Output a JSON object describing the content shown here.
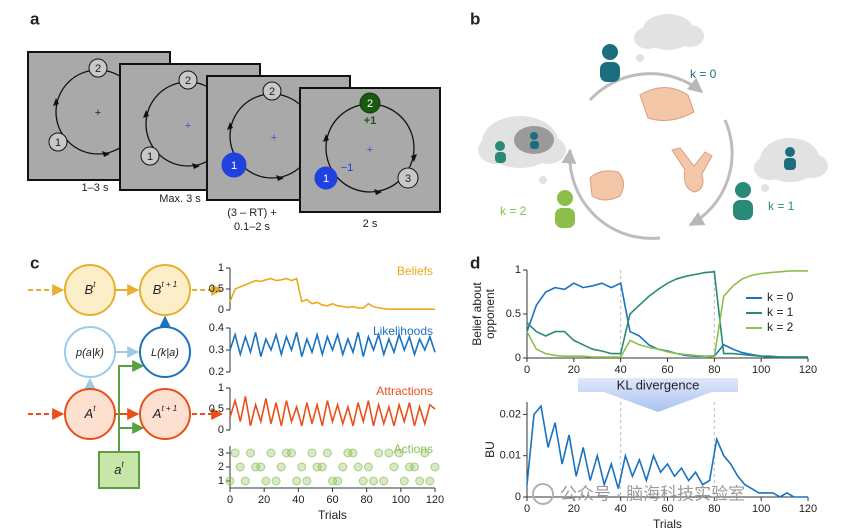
{
  "panel_a": {
    "label": "a",
    "screens": [
      {
        "targets": [
          "2",
          "1"
        ],
        "fixation": "+",
        "caption": [
          "1–3 s"
        ]
      },
      {
        "targets": [
          "2",
          "1"
        ],
        "fixation": "+",
        "caption": [
          "Max. 3 s"
        ]
      },
      {
        "targets": [
          "2",
          "1"
        ],
        "fixation": "+",
        "caption": [
          "(3 – RT) +",
          "0.1–2 s"
        ]
      },
      {
        "targets": [
          "2",
          "1",
          "3"
        ],
        "fixation": "+",
        "outcomes": [
          "+1",
          "−1"
        ],
        "caption": [
          "2 s"
        ]
      }
    ]
  },
  "panel_b": {
    "label": "b",
    "players": [
      "k = 0",
      "k = 1",
      "k = 2"
    ]
  },
  "panel_c": {
    "label": "c",
    "nodes": [
      {
        "base": "B",
        "sup": "t"
      },
      {
        "base": "B",
        "sup": "t + 1"
      },
      {
        "base": "p(a|k)"
      },
      {
        "base": "L(k|a)"
      },
      {
        "base": "A",
        "sup": "t"
      },
      {
        "base": "A",
        "sup": "t + 1"
      },
      {
        "base": "a",
        "sup": "t"
      }
    ]
  },
  "panel_d": {
    "label": "d",
    "arrow": "KL divergence"
  },
  "watermark": "公众号 · 脑海科技实验室",
  "chart_data": [
    {
      "type": "line",
      "title": "Beliefs",
      "x": [
        0,
        3,
        6,
        9,
        12,
        15,
        18,
        21,
        24,
        27,
        30,
        33,
        36,
        39,
        42,
        45,
        48,
        51,
        54,
        57,
        60,
        63,
        66,
        69,
        72,
        75,
        78,
        81,
        84,
        87,
        90,
        93,
        96,
        99,
        102,
        105,
        108,
        111,
        114,
        117,
        120
      ],
      "series": [
        {
          "color": "#f0a818",
          "values": [
            0.2,
            0.5,
            0.55,
            0.6,
            0.65,
            0.7,
            0.68,
            0.72,
            0.75,
            0.7,
            0.72,
            0.75,
            0.7,
            0.75,
            0.2,
            0.25,
            0.15,
            0.18,
            0.12,
            0.1,
            0.15,
            0.1,
            0.08,
            0.06,
            0.08,
            0.05,
            0.05,
            0.15,
            0.08,
            0.05,
            0.03,
            0.02,
            0.02,
            0.02,
            0.02,
            0.02,
            0.02,
            0.02,
            0.02,
            0.02,
            0.02
          ]
        }
      ],
      "xlim": [
        0,
        120
      ],
      "ylim": [
        0,
        1
      ],
      "yticks": [
        0,
        0.5,
        1
      ]
    },
    {
      "type": "line",
      "title": "Likelihoods",
      "x": [
        0,
        3,
        6,
        9,
        12,
        15,
        18,
        21,
        24,
        27,
        30,
        33,
        36,
        39,
        42,
        45,
        48,
        51,
        54,
        57,
        60,
        63,
        66,
        69,
        72,
        75,
        78,
        81,
        84,
        87,
        90,
        93,
        96,
        99,
        102,
        105,
        108,
        111,
        114,
        117,
        120
      ],
      "series": [
        {
          "color": "#1a73c0",
          "values": [
            0.3,
            0.37,
            0.28,
            0.36,
            0.29,
            0.38,
            0.27,
            0.35,
            0.3,
            0.37,
            0.28,
            0.36,
            0.3,
            0.38,
            0.27,
            0.35,
            0.29,
            0.37,
            0.28,
            0.36,
            0.3,
            0.37,
            0.28,
            0.35,
            0.29,
            0.38,
            0.27,
            0.36,
            0.3,
            0.37,
            0.28,
            0.35,
            0.29,
            0.37,
            0.3,
            0.36,
            0.28,
            0.35,
            0.3,
            0.36,
            0.29
          ]
        }
      ],
      "xlim": [
        0,
        120
      ],
      "ylim": [
        0.2,
        0.4
      ],
      "yticks": [
        0.2,
        0.3,
        0.4
      ]
    },
    {
      "type": "line",
      "title": "Attractions",
      "x": [
        0,
        3,
        6,
        9,
        12,
        15,
        18,
        21,
        24,
        27,
        30,
        33,
        36,
        39,
        42,
        45,
        48,
        51,
        54,
        57,
        60,
        63,
        66,
        69,
        72,
        75,
        78,
        81,
        84,
        87,
        90,
        93,
        96,
        99,
        102,
        105,
        108,
        111,
        114,
        117,
        120
      ],
      "series": [
        {
          "color": "#e8501a",
          "values": [
            0.3,
            0.7,
            0.2,
            0.8,
            0.1,
            0.6,
            0.2,
            0.75,
            0.15,
            0.65,
            0.1,
            0.7,
            0.2,
            0.55,
            0.1,
            0.65,
            0.15,
            0.6,
            0.1,
            0.7,
            0.2,
            0.6,
            0.15,
            0.55,
            0.1,
            0.65,
            0.2,
            0.7,
            0.1,
            0.6,
            0.15,
            0.55,
            0.1,
            0.6,
            0.2,
            0.65,
            0.1,
            0.55,
            0.15,
            0.6,
            0.5
          ]
        }
      ],
      "xlim": [
        0,
        120
      ],
      "ylim": [
        0,
        1
      ],
      "yticks": [
        0,
        0.5,
        1
      ]
    },
    {
      "type": "scatter",
      "title": "Actions",
      "xlabel": "Trials",
      "x": [
        0,
        3,
        6,
        9,
        12,
        15,
        18,
        21,
        24,
        27,
        30,
        33,
        36,
        39,
        42,
        45,
        48,
        51,
        54,
        57,
        60,
        63,
        66,
        69,
        72,
        75,
        78,
        81,
        84,
        87,
        90,
        93,
        96,
        99,
        102,
        105,
        108,
        111,
        114,
        117,
        120
      ],
      "series": [
        {
          "color": "#8cc05a",
          "values": [
            1,
            3,
            2,
            1,
            3,
            2,
            2,
            1,
            3,
            1,
            2,
            3,
            3,
            1,
            2,
            1,
            3,
            2,
            2,
            3,
            1,
            1,
            2,
            3,
            3,
            2,
            1,
            2,
            1,
            3,
            1,
            3,
            2,
            3,
            1,
            2,
            2,
            1,
            3,
            1,
            2
          ]
        }
      ],
      "xlim": [
        0,
        120
      ],
      "xticks": [
        0,
        20,
        40,
        60,
        80,
        100,
        120
      ],
      "ylim": [
        0.5,
        3.5
      ],
      "yticks": [
        1,
        2,
        3
      ]
    },
    {
      "type": "line",
      "ylabel": [
        "Belief about",
        "opponent"
      ],
      "legend": "right",
      "x": [
        0,
        4,
        8,
        12,
        16,
        20,
        24,
        28,
        32,
        36,
        40,
        44,
        48,
        52,
        56,
        60,
        64,
        68,
        72,
        76,
        80,
        84,
        88,
        92,
        96,
        100,
        104,
        108,
        112,
        116,
        120
      ],
      "series": [
        {
          "name": "k = 0",
          "color": "#1a73c0",
          "values": [
            0.3,
            0.6,
            0.75,
            0.8,
            0.78,
            0.85,
            0.8,
            0.82,
            0.85,
            0.8,
            0.85,
            0.3,
            0.25,
            0.15,
            0.1,
            0.08,
            0.05,
            0.03,
            0.02,
            0.02,
            0.02,
            0.15,
            0.1,
            0.06,
            0.04,
            0.02,
            0.02,
            0.01,
            0.01,
            0.01,
            0.01
          ]
        },
        {
          "name": "k = 1",
          "color": "#2a8a78",
          "values": [
            0.4,
            0.3,
            0.25,
            0.3,
            0.3,
            0.2,
            0.15,
            0.1,
            0.08,
            0.05,
            0.05,
            0.5,
            0.6,
            0.7,
            0.78,
            0.85,
            0.9,
            0.93,
            0.95,
            0.97,
            0.98,
            0.05,
            0.05,
            0.04,
            0.03,
            0.02,
            0.01,
            0.01,
            0.01,
            0.01,
            0.01
          ]
        },
        {
          "name": "k = 2",
          "color": "#8cbf4a",
          "values": [
            0.3,
            0.1,
            0.05,
            0.03,
            0.02,
            0.02,
            0.02,
            0.01,
            0.01,
            0.01,
            0.01,
            0.2,
            0.15,
            0.12,
            0.1,
            0.07,
            0.05,
            0.04,
            0.03,
            0.02,
            0.01,
            0.7,
            0.82,
            0.9,
            0.94,
            0.96,
            0.97,
            0.98,
            0.99,
            0.99,
            0.99
          ]
        }
      ],
      "xlim": [
        0,
        120
      ],
      "xticks": [
        0,
        20,
        40,
        60,
        80,
        100,
        120
      ],
      "ylim": [
        0,
        1
      ],
      "yticks": [
        0,
        0.5,
        1
      ],
      "vlines": [
        40,
        80
      ]
    },
    {
      "type": "line",
      "ylabel": [
        "BU"
      ],
      "xlabel": "Trials",
      "x": [
        0,
        3,
        6,
        9,
        12,
        15,
        18,
        21,
        24,
        27,
        30,
        33,
        36,
        39,
        42,
        45,
        48,
        51,
        54,
        57,
        60,
        63,
        66,
        69,
        72,
        75,
        78,
        81,
        84,
        87,
        90,
        93,
        96,
        99,
        102,
        105,
        108,
        111,
        114,
        117,
        120
      ],
      "series": [
        {
          "color": "#1a73c0",
          "values": [
            0.003,
            0.02,
            0.022,
            0.012,
            0.018,
            0.008,
            0.015,
            0.005,
            0.012,
            0.004,
            0.01,
            0.003,
            0.008,
            0.002,
            0.01,
            0.005,
            0.009,
            0.004,
            0.01,
            0.006,
            0.008,
            0.005,
            0.007,
            0.004,
            0.006,
            0.003,
            0.004,
            0.014,
            0.01,
            0.008,
            0.005,
            0.003,
            0.002,
            0.001,
            0.001,
            0.001,
            0,
            0.001,
            0,
            0,
            0
          ]
        }
      ],
      "xlim": [
        0,
        120
      ],
      "xticks": [
        0,
        20,
        40,
        60,
        80,
        100,
        120
      ],
      "ylim": [
        0,
        0.023
      ],
      "yticks": [
        0,
        0.01,
        0.02
      ],
      "vlines": [
        40,
        80
      ]
    }
  ]
}
